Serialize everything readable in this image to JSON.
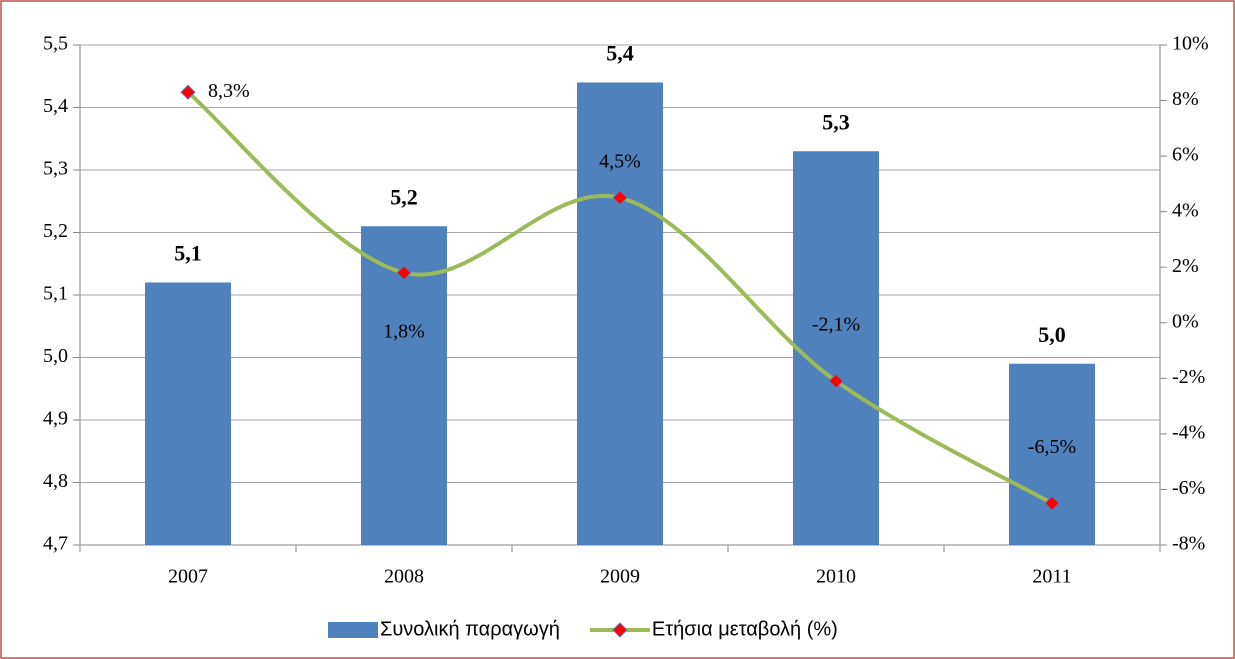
{
  "chart_data": {
    "type": "combo",
    "categories": [
      "2007",
      "2008",
      "2009",
      "2010",
      "2011"
    ],
    "series": [
      {
        "name": "Συνολική παραγωγή",
        "type": "bar",
        "color": "#4f81bd",
        "values": [
          5.12,
          5.21,
          5.44,
          5.33,
          4.99
        ],
        "value_labels": [
          "5,1",
          "5,2",
          "5,4",
          "5,3",
          "5,0"
        ]
      },
      {
        "name": "Ετήσια μεταβολή (%)",
        "type": "line",
        "axis": "y2",
        "color": "#9bbb59",
        "marker_color": "#ff0000",
        "values": [
          8.3,
          1.8,
          4.5,
          -2.1,
          -6.5
        ],
        "value_labels": [
          "8,3%",
          "1,8%",
          "4,5%",
          "-2,1%",
          "-6,5%"
        ]
      }
    ],
    "ylim": [
      4.7,
      5.5
    ],
    "yticks": [
      {
        "value": 4.7,
        "label": "4,7"
      },
      {
        "value": 4.8,
        "label": "4,8"
      },
      {
        "value": 4.9,
        "label": "4,9"
      },
      {
        "value": 5.0,
        "label": "5,0"
      },
      {
        "value": 5.1,
        "label": "5,1"
      },
      {
        "value": 5.2,
        "label": "5,2"
      },
      {
        "value": 5.3,
        "label": "5,3"
      },
      {
        "value": 5.4,
        "label": "5,4"
      },
      {
        "value": 5.5,
        "label": "5,5"
      }
    ],
    "y2lim": [
      -8,
      10
    ],
    "y2ticks": [
      {
        "value": -8,
        "label": "-8%"
      },
      {
        "value": -6,
        "label": "-6%"
      },
      {
        "value": -4,
        "label": "-4%"
      },
      {
        "value": -2,
        "label": "-2%"
      },
      {
        "value": 0,
        "label": "0%"
      },
      {
        "value": 2,
        "label": "2%"
      },
      {
        "value": 4,
        "label": "4%"
      },
      {
        "value": 6,
        "label": "6%"
      },
      {
        "value": 8,
        "label": "8%"
      },
      {
        "value": 10,
        "label": "10%"
      }
    ],
    "grid": true,
    "legend": "bottom"
  }
}
